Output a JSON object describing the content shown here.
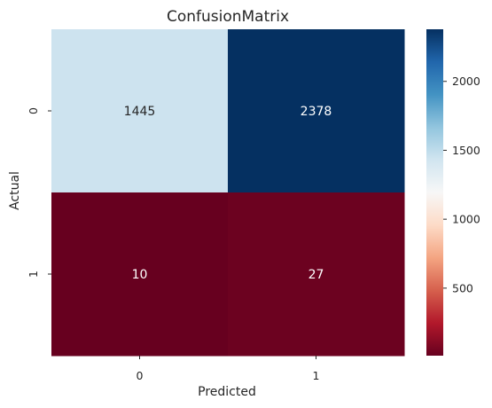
{
  "chart_data": {
    "type": "heatmap",
    "title": "ConfusionMatrix",
    "xlabel": "Predicted",
    "ylabel": "Actual",
    "x_categories": [
      "0",
      "1"
    ],
    "y_categories": [
      "0",
      "1"
    ],
    "values": [
      [
        1445,
        2378
      ],
      [
        10,
        27
      ]
    ],
    "colormap": "RdBu",
    "vmin": 10,
    "vmax": 2378,
    "colorbar_ticks": [
      500,
      1000,
      1500,
      2000
    ],
    "colorbar_tick_labels": [
      "500",
      "1000",
      "1500",
      "2000"
    ],
    "annotation_colors": {
      "light_cell": "#262626",
      "dark_cell": "#ffffff"
    }
  }
}
